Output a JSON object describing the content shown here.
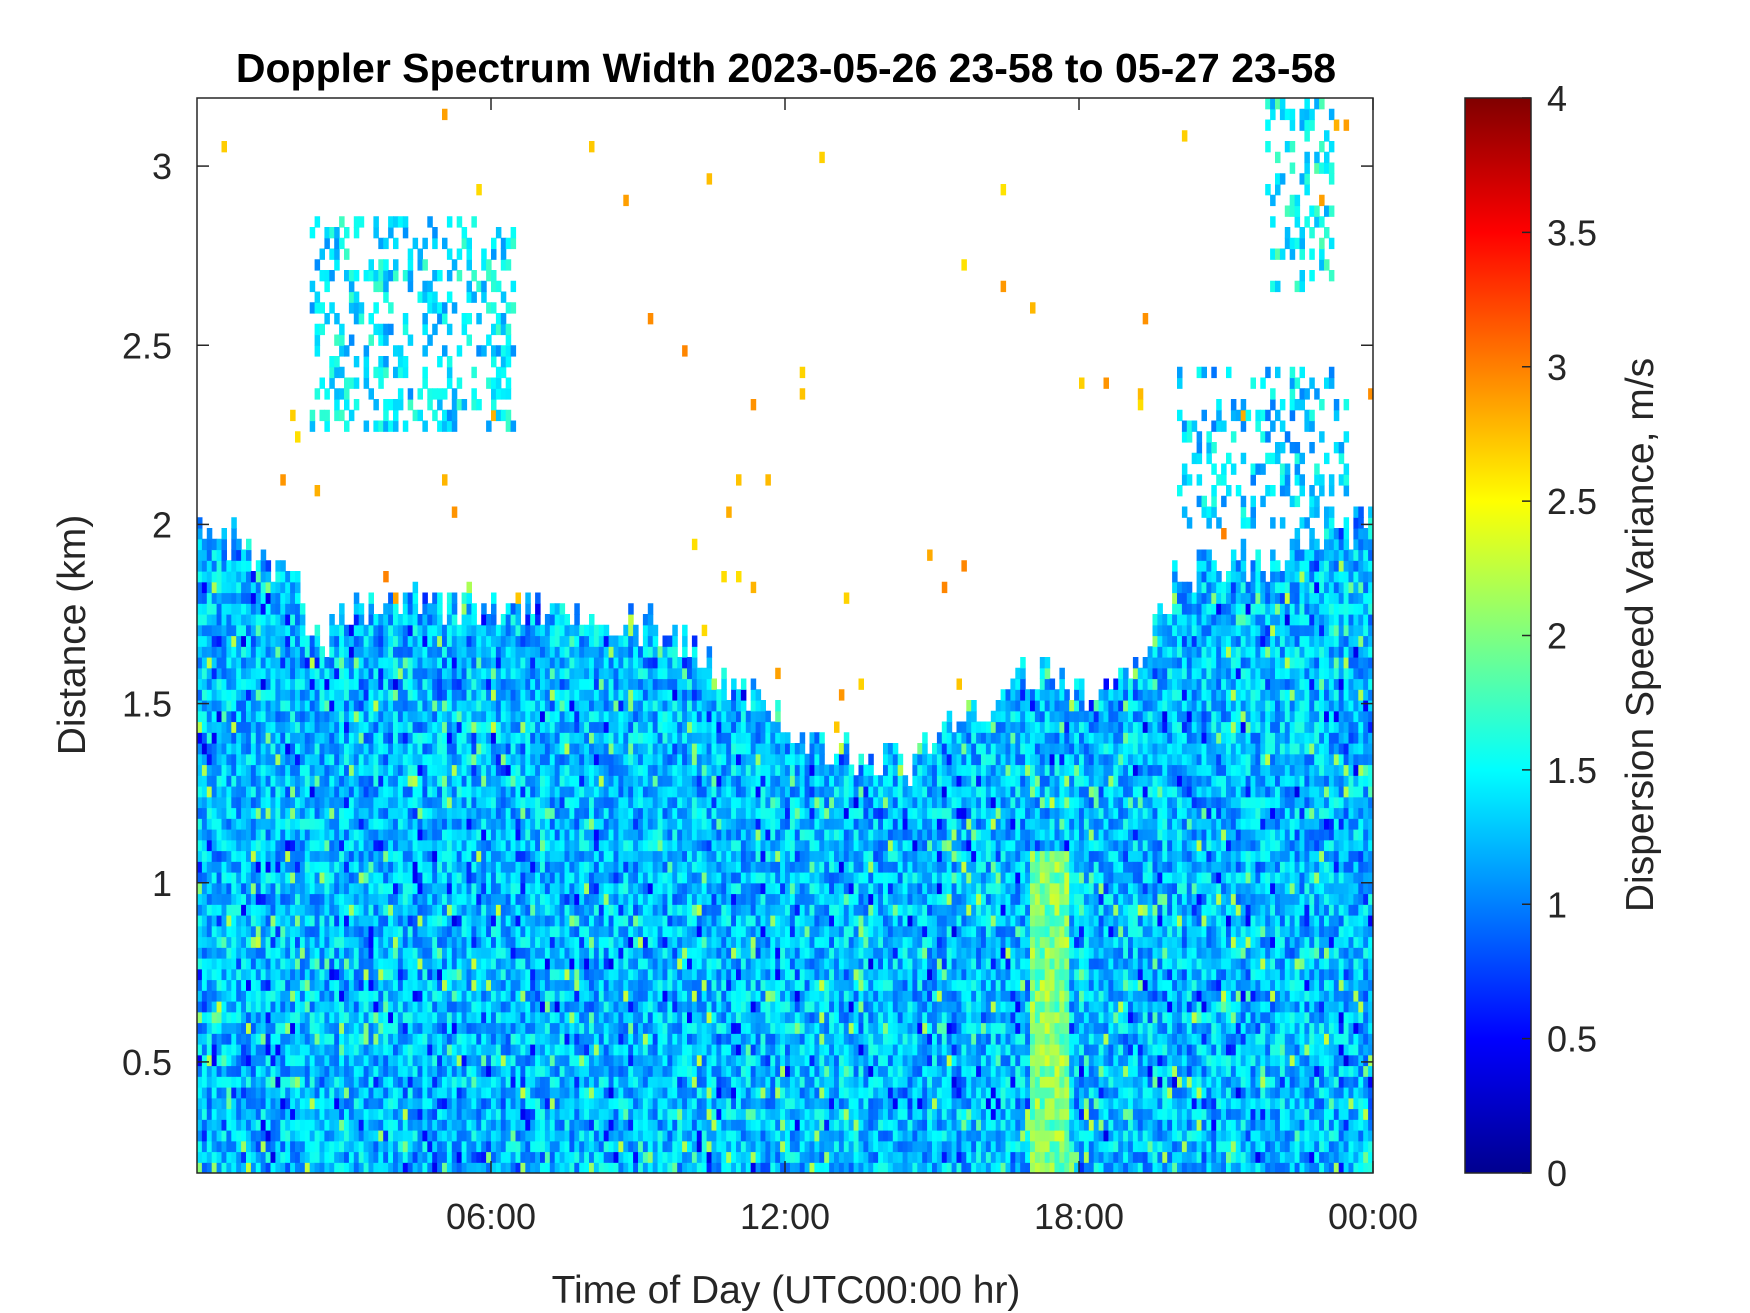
{
  "chart_data": {
    "type": "heatmap",
    "title": "Doppler Spectrum Width 2023-05-26 23-58 to 05-27 23-58",
    "xlabel": "Time of Day (UTC00:00 hr)",
    "ylabel": "Distance (km)",
    "xlim": [
      0,
      24
    ],
    "ylim": [
      0.19,
      3.19
    ],
    "x_ticks": [
      {
        "value": 6,
        "label": "06:00"
      },
      {
        "value": 12,
        "label": "12:00"
      },
      {
        "value": 18,
        "label": "18:00"
      },
      {
        "value": 24,
        "label": "00:00"
      }
    ],
    "y_ticks": [
      {
        "value": 0.5,
        "label": "0.5"
      },
      {
        "value": 1,
        "label": "1"
      },
      {
        "value": 1.5,
        "label": "1.5"
      },
      {
        "value": 2,
        "label": "2"
      },
      {
        "value": 2.5,
        "label": "2.5"
      },
      {
        "value": 3,
        "label": "3"
      }
    ],
    "colorbar": {
      "label": "Dispersion Speed Variance, m/s",
      "colormap": "jet",
      "range": [
        0,
        4
      ],
      "ticks": [
        {
          "value": 0,
          "label": "0"
        },
        {
          "value": 0.5,
          "label": "0.5"
        },
        {
          "value": 1,
          "label": "1"
        },
        {
          "value": 1.5,
          "label": "1.5"
        },
        {
          "value": 2,
          "label": "2"
        },
        {
          "value": 2.5,
          "label": "2.5"
        },
        {
          "value": 3,
          "label": "3"
        },
        {
          "value": 3.5,
          "label": "3.5"
        },
        {
          "value": 4,
          "label": "4"
        }
      ]
    },
    "grid": false,
    "background_color": "#ffffff",
    "boundary_layer_top_km": [
      [
        0,
        2.0
      ],
      [
        1,
        1.95
      ],
      [
        2,
        1.85
      ],
      [
        2.5,
        1.65
      ],
      [
        3,
        1.75
      ],
      [
        4,
        1.78
      ],
      [
        6,
        1.78
      ],
      [
        8,
        1.75
      ],
      [
        9.5,
        1.72
      ],
      [
        10.5,
        1.6
      ],
      [
        11.5,
        1.5
      ],
      [
        12.5,
        1.4
      ],
      [
        13.5,
        1.35
      ],
      [
        14.5,
        1.33
      ],
      [
        15.5,
        1.45
      ],
      [
        16.5,
        1.5
      ],
      [
        17,
        1.6
      ],
      [
        18,
        1.55
      ],
      [
        19,
        1.55
      ],
      [
        20,
        1.85
      ],
      [
        21,
        1.9
      ],
      [
        22,
        1.9
      ],
      [
        23,
        2.0
      ],
      [
        24,
        2.0
      ]
    ],
    "feature_regions": [
      {
        "x": [
          2.3,
          6.5
        ],
        "y": [
          2.25,
          2.85
        ],
        "level": 1.4
      },
      {
        "x": [
          20,
          23.5
        ],
        "y": [
          2.0,
          2.45
        ],
        "level": 1.3
      },
      {
        "x": [
          21.8,
          23.2
        ],
        "y": [
          2.65,
          3.19
        ],
        "level": 1.5
      },
      {
        "x": [
          17,
          17.8
        ],
        "y": [
          0.2,
          1.1
        ],
        "level": 2.0
      }
    ]
  }
}
